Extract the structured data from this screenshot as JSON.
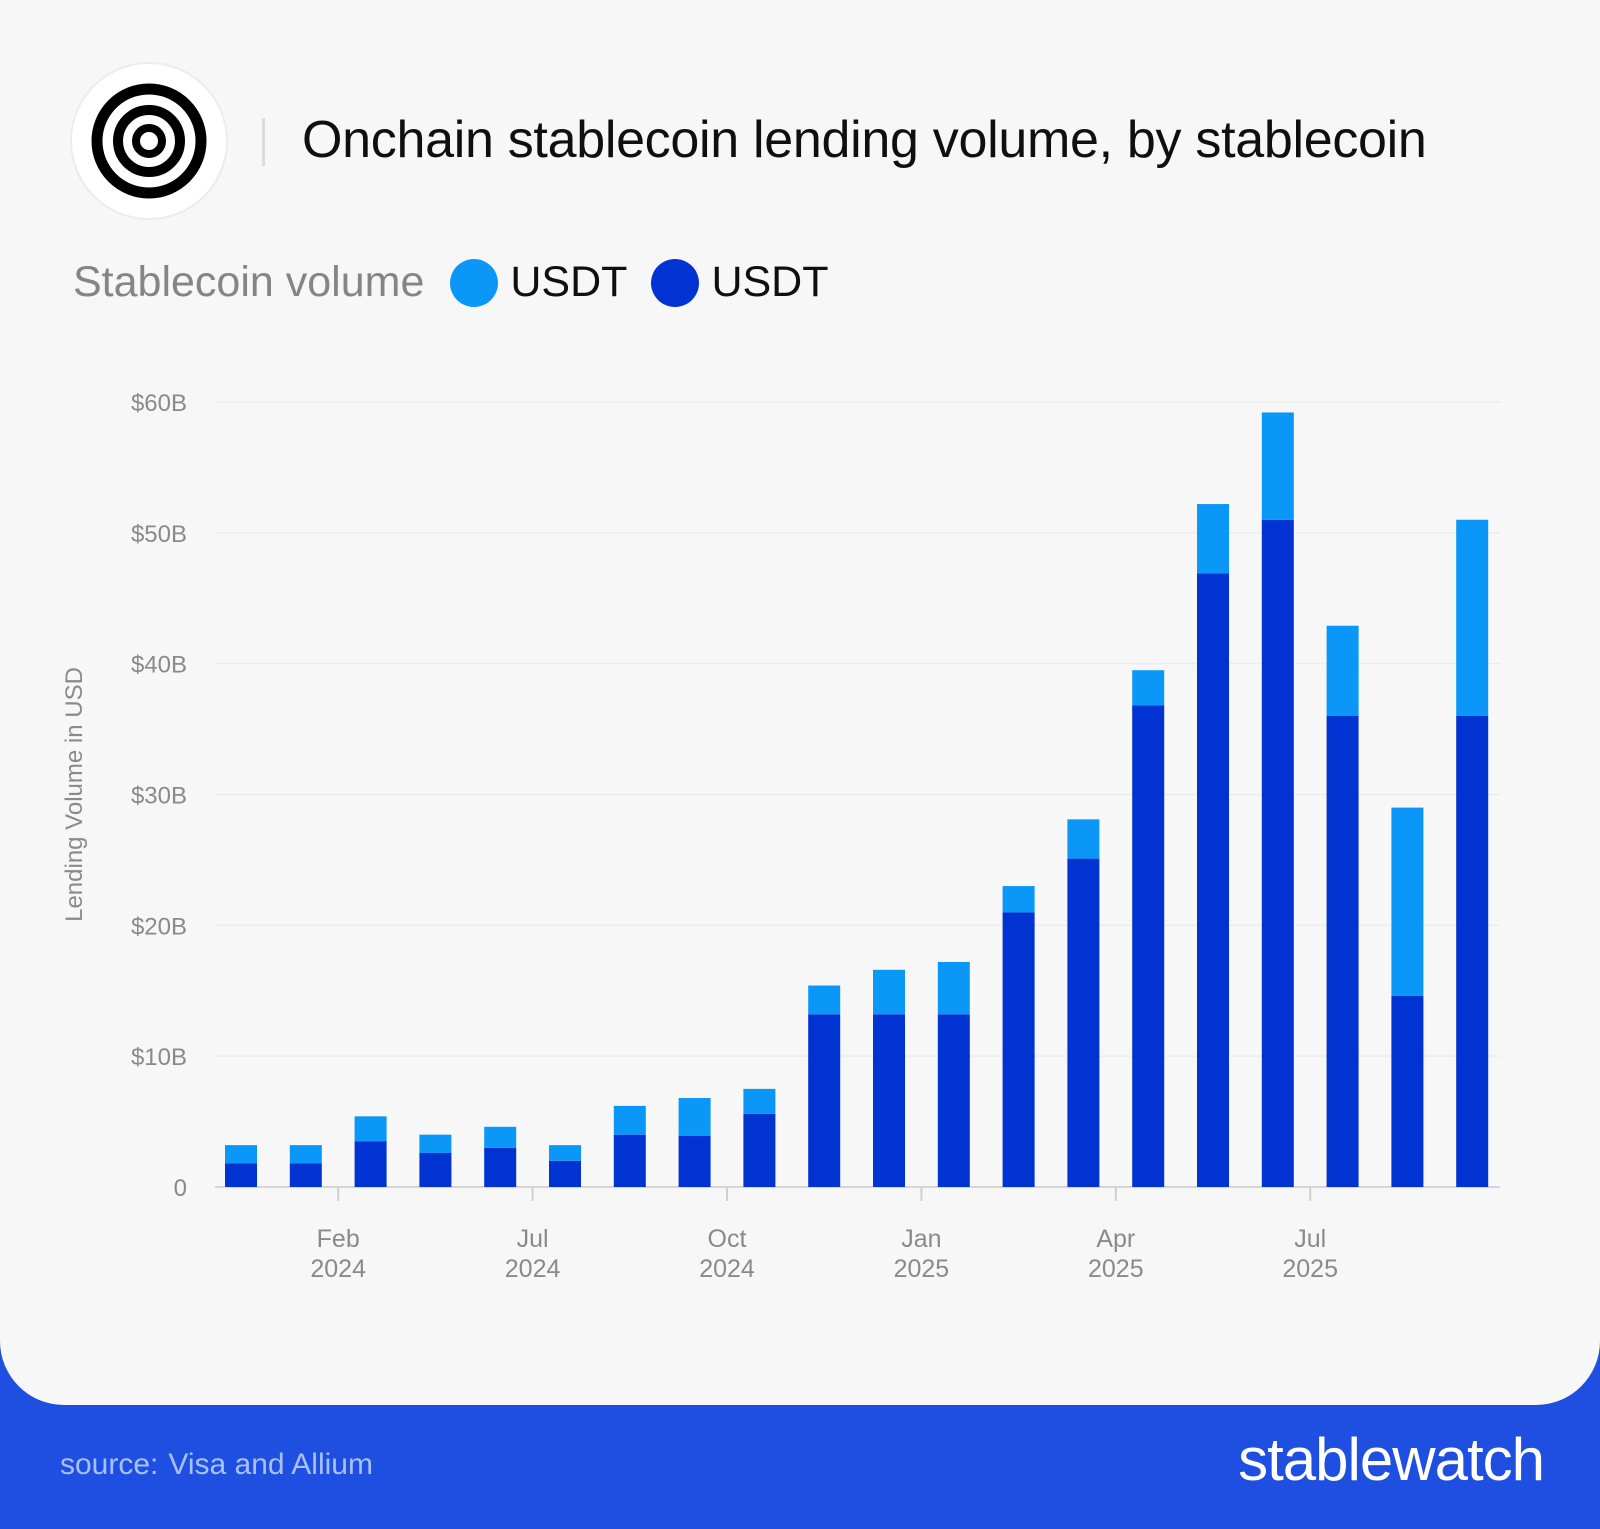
{
  "header": {
    "title": "Onchain stablecoin lending volume, by stablecoin",
    "logo_icon": "concentric-rings-logo"
  },
  "legend": {
    "label": "Stablecoin volume",
    "items": [
      {
        "name": "USDT",
        "color": "#0a97f7"
      },
      {
        "name": "USDT",
        "color": "#0033d1"
      }
    ]
  },
  "chart_data": {
    "type": "bar",
    "stacked": true,
    "ylabel": "Lending Volume in USD",
    "ylim": [
      0,
      60
    ],
    "yticks": [
      0,
      10,
      20,
      30,
      40,
      50,
      60
    ],
    "ytick_labels": [
      "0",
      "$10B",
      "$20B",
      "$30B",
      "$40B",
      "$50B",
      "$60B"
    ],
    "xtick_labels": [
      {
        "top": "Feb",
        "bottom": "2024",
        "after_bar": 1
      },
      {
        "top": "Jul",
        "bottom": "2024",
        "after_bar": 4
      },
      {
        "top": "Oct",
        "bottom": "2024",
        "after_bar": 7
      },
      {
        "top": "Jan",
        "bottom": "2025",
        "after_bar": 10
      },
      {
        "top": "Apr",
        "bottom": "2025",
        "after_bar": 13
      },
      {
        "top": "Jul",
        "bottom": "2025",
        "after_bar": 16
      }
    ],
    "grid": true,
    "series": [
      {
        "name": "USDT",
        "color": "#0033d1",
        "values": [
          1.8,
          1.8,
          3.5,
          2.6,
          3.0,
          2.0,
          4.0,
          3.9,
          5.6,
          13.2,
          13.2,
          13.2,
          21.0,
          25.1,
          36.8,
          46.9,
          51.0,
          36.0,
          14.6,
          36.0
        ]
      },
      {
        "name": "USDT",
        "color": "#0a97f7",
        "values": [
          1.4,
          1.4,
          1.9,
          1.4,
          1.6,
          1.2,
          2.2,
          2.9,
          1.9,
          2.2,
          3.4,
          4.0,
          2.0,
          3.0,
          2.7,
          5.3,
          8.2,
          6.9,
          14.4,
          15.0
        ]
      }
    ]
  },
  "footer": {
    "source_label": "source:",
    "source_text": "Visa and Allium",
    "brand": "stablewatch"
  }
}
